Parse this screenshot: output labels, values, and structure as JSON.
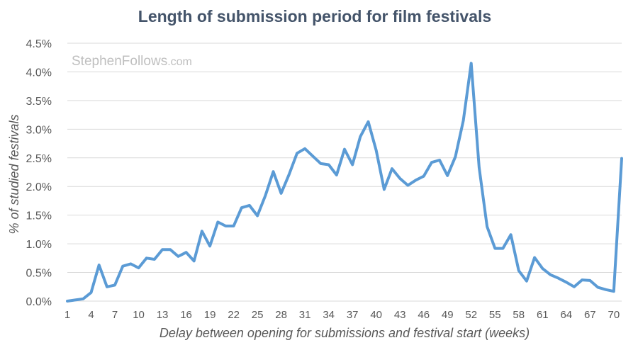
{
  "chart_data": {
    "type": "line",
    "title": "Length of submission period for film festivals",
    "watermark": "StephenFollows.com",
    "watermark_parts": [
      "StephenFollows",
      ".com"
    ],
    "xlabel": "Delay between opening for submissions and festival start (weeks)",
    "ylabel": "% of studied festivals",
    "x_tick_labels": [
      "1",
      "4",
      "7",
      "10",
      "13",
      "16",
      "19",
      "22",
      "25",
      "28",
      "31",
      "34",
      "37",
      "40",
      "43",
      "46",
      "49",
      "52",
      "55",
      "58",
      "61",
      "64",
      "67",
      "70"
    ],
    "y_tick_labels": [
      "0.0%",
      "0.5%",
      "1.0%",
      "1.5%",
      "2.0%",
      "2.5%",
      "3.0%",
      "3.5%",
      "4.0%",
      "4.5%"
    ],
    "xlim": [
      1,
      71
    ],
    "ylim": [
      0,
      4.5
    ],
    "grid": true,
    "colors": {
      "line": "#5B9BD5",
      "title": "#44546A",
      "grid": "#D9D9D9",
      "text": "#595959",
      "watermark": "#BFBFBF"
    },
    "series": [
      {
        "x": [
          1,
          2,
          3,
          4,
          5,
          6,
          7,
          8,
          9,
          10,
          11,
          12,
          13,
          14,
          15,
          16,
          17,
          18,
          19,
          20,
          21,
          22,
          23,
          24,
          25,
          26,
          27,
          28,
          29,
          30,
          31,
          32,
          33,
          34,
          35,
          36,
          37,
          38,
          39,
          40,
          41,
          42,
          43,
          44,
          45,
          46,
          47,
          48,
          49,
          50,
          51,
          52,
          53,
          54,
          55,
          56,
          57,
          58,
          59,
          60,
          61,
          62,
          63,
          64,
          65,
          66,
          67,
          68,
          69,
          70,
          71
        ],
        "values": [
          0.0,
          0.02,
          0.04,
          0.15,
          0.63,
          0.25,
          0.28,
          0.61,
          0.65,
          0.58,
          0.75,
          0.73,
          0.9,
          0.9,
          0.78,
          0.85,
          0.7,
          1.22,
          0.96,
          1.38,
          1.31,
          1.31,
          1.63,
          1.67,
          1.49,
          1.84,
          2.26,
          1.88,
          2.21,
          2.58,
          2.66,
          2.53,
          2.4,
          2.38,
          2.2,
          2.65,
          2.38,
          2.87,
          3.13,
          2.63,
          1.95,
          2.31,
          2.14,
          2.02,
          2.11,
          2.18,
          2.42,
          2.46,
          2.19,
          2.52,
          3.15,
          4.15,
          2.33,
          1.3,
          0.92,
          0.92,
          1.16,
          0.53,
          0.35,
          0.76,
          0.57,
          0.46,
          0.4,
          0.33,
          0.25,
          0.37,
          0.36,
          0.24,
          0.2,
          0.17,
          2.49
        ]
      }
    ]
  }
}
